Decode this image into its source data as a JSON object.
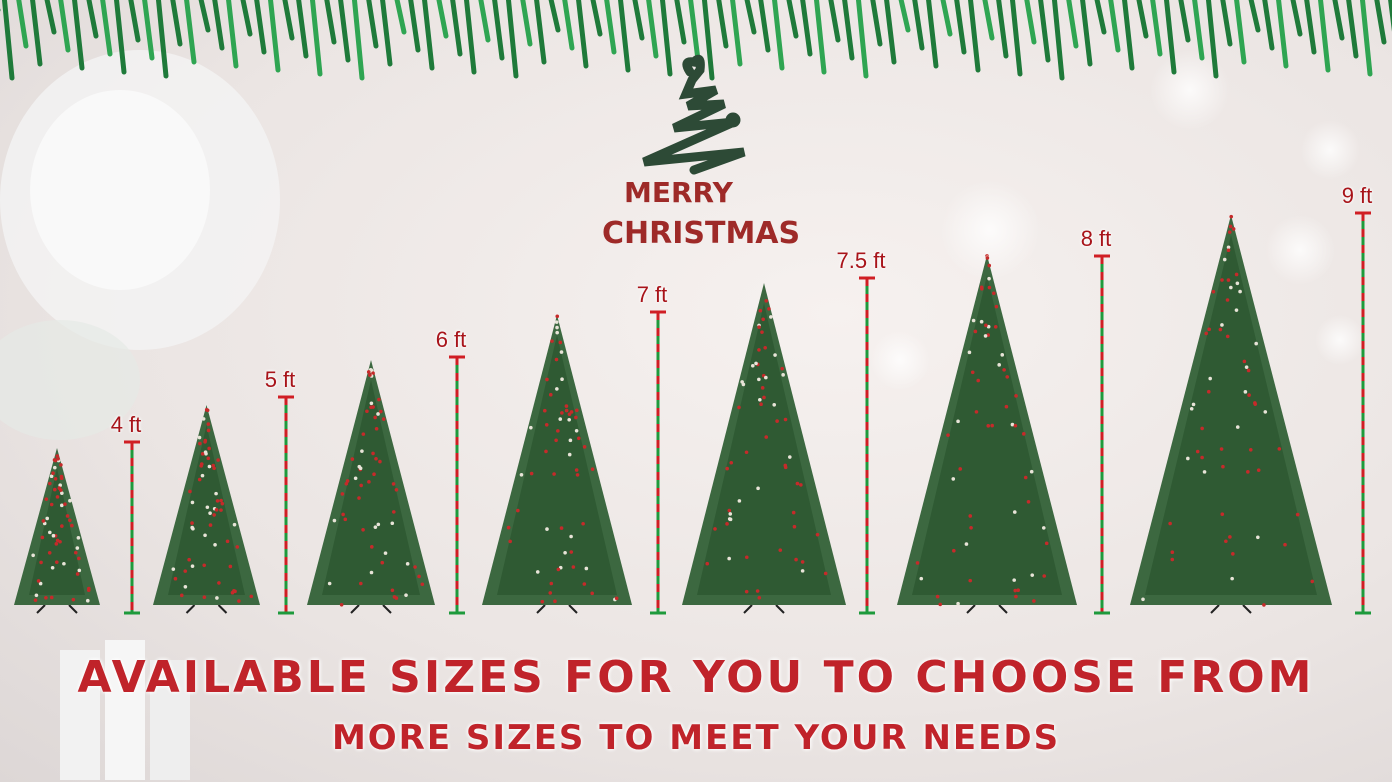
{
  "logo": {
    "line1": "MERRY",
    "line2": "CHRISTMAS"
  },
  "sizes": [
    "4 ft",
    "5 ft",
    "6 ft",
    "7 ft",
    "7.5 ft",
    "8 ft",
    "9 ft"
  ],
  "headline": "AVAILABLE SIZES FOR YOU TO CHOOSE FROM",
  "subheadline": "MORE SIZES TO MEET YOUR NEEDS",
  "colors": {
    "text_red": "#c0232a",
    "label_red": "#a8141a",
    "ruler_green": "#1e9a3c",
    "tree_green": "#2f5a33"
  }
}
